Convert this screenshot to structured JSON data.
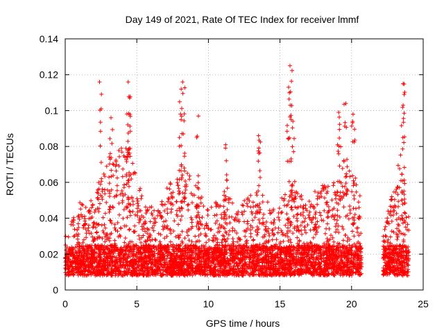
{
  "chart_data": {
    "type": "scatter",
    "title": "Day 149 of 2021, Rate Of TEC Index for receiver lmmf",
    "xlabel": "GPS time / hours",
    "ylabel": "ROTI / TECUs",
    "xlim": [
      0,
      25
    ],
    "ylim": [
      0,
      0.14
    ],
    "xticks": [
      0,
      5,
      10,
      15,
      20,
      25
    ],
    "xtick_labels": [
      "0",
      "5",
      "10",
      "15",
      "20",
      "25"
    ],
    "yticks": [
      0,
      0.02,
      0.04,
      0.06,
      0.08,
      0.1,
      0.12,
      0.14
    ],
    "ytick_labels": [
      "0",
      "0.02",
      "0.04",
      "0.06",
      "0.08",
      "0.1",
      "0.12",
      "0.14"
    ],
    "grid": true,
    "marker": "+",
    "color": "#ff0000",
    "data_gap_hours": [
      20.7,
      22.2
    ],
    "data_end_hours": 24.0,
    "notable_points": [
      {
        "x": 2.4,
        "y": 0.116
      },
      {
        "x": 3.2,
        "y": 0.096
      },
      {
        "x": 4.4,
        "y": 0.116
      },
      {
        "x": 4.5,
        "y": 0.107
      },
      {
        "x": 8.2,
        "y": 0.116
      },
      {
        "x": 8.1,
        "y": 0.112
      },
      {
        "x": 9.3,
        "y": 0.097
      },
      {
        "x": 11.2,
        "y": 0.081
      },
      {
        "x": 13.5,
        "y": 0.086
      },
      {
        "x": 15.7,
        "y": 0.125
      },
      {
        "x": 15.6,
        "y": 0.113
      },
      {
        "x": 15.9,
        "y": 0.094
      },
      {
        "x": 19.1,
        "y": 0.099
      },
      {
        "x": 19.6,
        "y": 0.104
      },
      {
        "x": 20.1,
        "y": 0.098
      },
      {
        "x": 23.6,
        "y": 0.115
      },
      {
        "x": 23.6,
        "y": 0.103
      }
    ],
    "activity_envelope": [
      {
        "x": 0.0,
        "y": 0.03
      },
      {
        "x": 1.0,
        "y": 0.05
      },
      {
        "x": 2.0,
        "y": 0.05
      },
      {
        "x": 2.5,
        "y": 0.06
      },
      {
        "x": 3.2,
        "y": 0.08
      },
      {
        "x": 4.4,
        "y": 0.08
      },
      {
        "x": 5.5,
        "y": 0.05
      },
      {
        "x": 6.5,
        "y": 0.045
      },
      {
        "x": 7.2,
        "y": 0.06
      },
      {
        "x": 8.2,
        "y": 0.07
      },
      {
        "x": 9.2,
        "y": 0.06
      },
      {
        "x": 10.0,
        "y": 0.045
      },
      {
        "x": 11.2,
        "y": 0.055
      },
      {
        "x": 12.0,
        "y": 0.045
      },
      {
        "x": 13.4,
        "y": 0.06
      },
      {
        "x": 14.5,
        "y": 0.045
      },
      {
        "x": 15.8,
        "y": 0.06
      },
      {
        "x": 16.8,
        "y": 0.05
      },
      {
        "x": 17.8,
        "y": 0.06
      },
      {
        "x": 19.0,
        "y": 0.06
      },
      {
        "x": 19.6,
        "y": 0.075
      },
      {
        "x": 20.4,
        "y": 0.06
      },
      {
        "x": 20.7,
        "y": 0.05
      },
      {
        "x": 22.2,
        "y": 0.03
      },
      {
        "x": 22.8,
        "y": 0.055
      },
      {
        "x": 23.5,
        "y": 0.08
      },
      {
        "x": 24.0,
        "y": 0.04
      }
    ],
    "baseline_range": [
      0.008,
      0.025
    ]
  }
}
